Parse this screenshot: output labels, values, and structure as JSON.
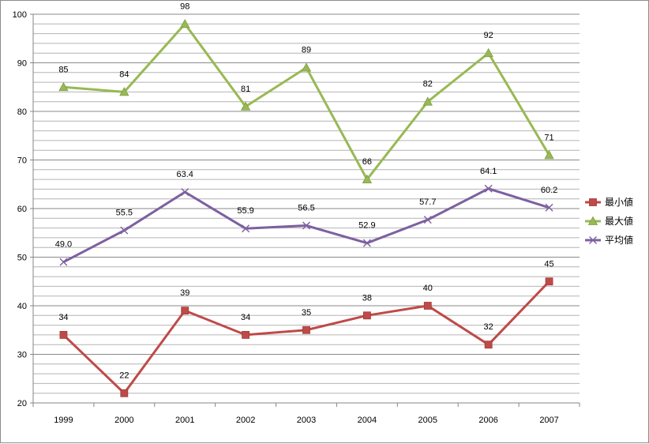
{
  "chart_data": {
    "type": "line",
    "title": "",
    "xlabel": "",
    "ylabel": "",
    "categories": [
      "1999",
      "2000",
      "2001",
      "2002",
      "2003",
      "2004",
      "2005",
      "2006",
      "2007"
    ],
    "ylim": [
      20,
      100
    ],
    "yticks": [
      20,
      30,
      40,
      50,
      60,
      70,
      80,
      90,
      100
    ],
    "minor_grid_step": 2,
    "grid": true,
    "legend_position": "right",
    "series": [
      {
        "name": "最小値",
        "color": "#be4b48",
        "marker": "square",
        "values": [
          34,
          22,
          39,
          34,
          35,
          38,
          40,
          32,
          45
        ],
        "labels": [
          "34",
          "22",
          "39",
          "34",
          "35",
          "38",
          "40",
          "32",
          "45"
        ]
      },
      {
        "name": "最大値",
        "color": "#98b954",
        "marker": "triangle",
        "values": [
          85,
          84,
          98,
          81,
          89,
          66,
          82,
          92,
          71
        ],
        "labels": [
          "85",
          "84",
          "98",
          "81",
          "89",
          "66",
          "82",
          "92",
          "71"
        ]
      },
      {
        "name": "平均値",
        "color": "#7d60a0",
        "marker": "x",
        "values": [
          49.0,
          55.5,
          63.4,
          55.9,
          56.5,
          52.9,
          57.7,
          64.1,
          60.2
        ],
        "labels": [
          "49.0",
          "55.5",
          "63.4",
          "55.9",
          "56.5",
          "52.9",
          "57.7",
          "64.1",
          "60.2"
        ]
      }
    ]
  }
}
